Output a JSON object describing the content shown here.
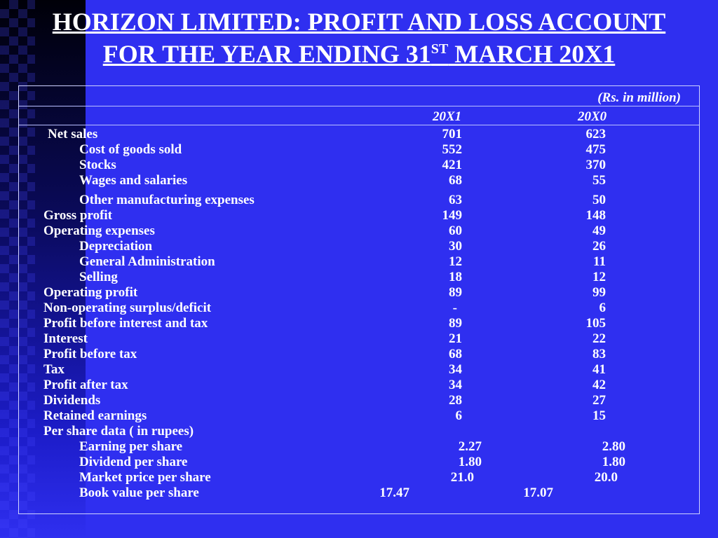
{
  "title": {
    "line1": "HORIZON LIMITED: PROFIT AND LOSS ACCOUNT",
    "line2_prefix": "FOR THE YEAR ENDING 31",
    "line2_sup": "ST",
    "line2_suffix": " MARCH  20X1"
  },
  "table": {
    "unit_note": "(Rs. in million)",
    "col_current": "20X1",
    "col_prior": "20X0",
    "rows": [
      {
        "label": "Net sales",
        "v1": "701",
        "v0": "623"
      },
      {
        "label": "Cost of goods sold",
        "v1": "552",
        "v0": "475"
      },
      {
        "label": "Stocks",
        "v1": "421",
        "v0": "370"
      },
      {
        "label": "Wages and salaries",
        "v1": "68",
        "v0": "55"
      },
      {
        "label": "Other manufacturing expenses",
        "v1": "63",
        "v0": "50"
      },
      {
        "label": "Gross profit",
        "v1": "149",
        "v0": "148"
      },
      {
        "label": "Operating expenses",
        "v1": "60",
        "v0": "49"
      },
      {
        "label": "Depreciation",
        "v1": "30",
        "v0": "26"
      },
      {
        "label": "General Administration",
        "v1": "12",
        "v0": "11"
      },
      {
        "label": "Selling",
        "v1": "18",
        "v0": "12"
      },
      {
        "label": "Operating profit",
        "v1": "89",
        "v0": "99"
      },
      {
        "label": "Non-operating  surplus/deficit",
        "v1": "-",
        "v0": "6"
      },
      {
        "label": "Profit before interest and tax",
        "v1": "89",
        "v0": "105"
      },
      {
        "label": "Interest",
        "v1": "21",
        "v0": "22"
      },
      {
        "label": "Profit before tax",
        "v1": "68",
        "v0": "83"
      },
      {
        "label": "Tax",
        "v1": "34",
        "v0": "41"
      },
      {
        "label": "Profit after tax",
        "v1": "34",
        "v0": "42"
      },
      {
        "label": "Dividends",
        "v1": "28",
        "v0": "27"
      },
      {
        "label": "Retained earnings",
        "v1": "6",
        "v0": "15"
      },
      {
        "label": "Per share data ( in rupees)",
        "v1": "",
        "v0": ""
      },
      {
        "label": "Earning per share",
        "v1": "2.27",
        "v0": "2.80"
      },
      {
        "label": "Dividend per share",
        "v1": "1.80",
        "v0": "1.80"
      },
      {
        "label": "Market price per share",
        "v1": "21.0",
        "v0": "20.0"
      },
      {
        "label": "Book value per share",
        "v1": "17.47",
        "v0": "17.07"
      }
    ]
  }
}
